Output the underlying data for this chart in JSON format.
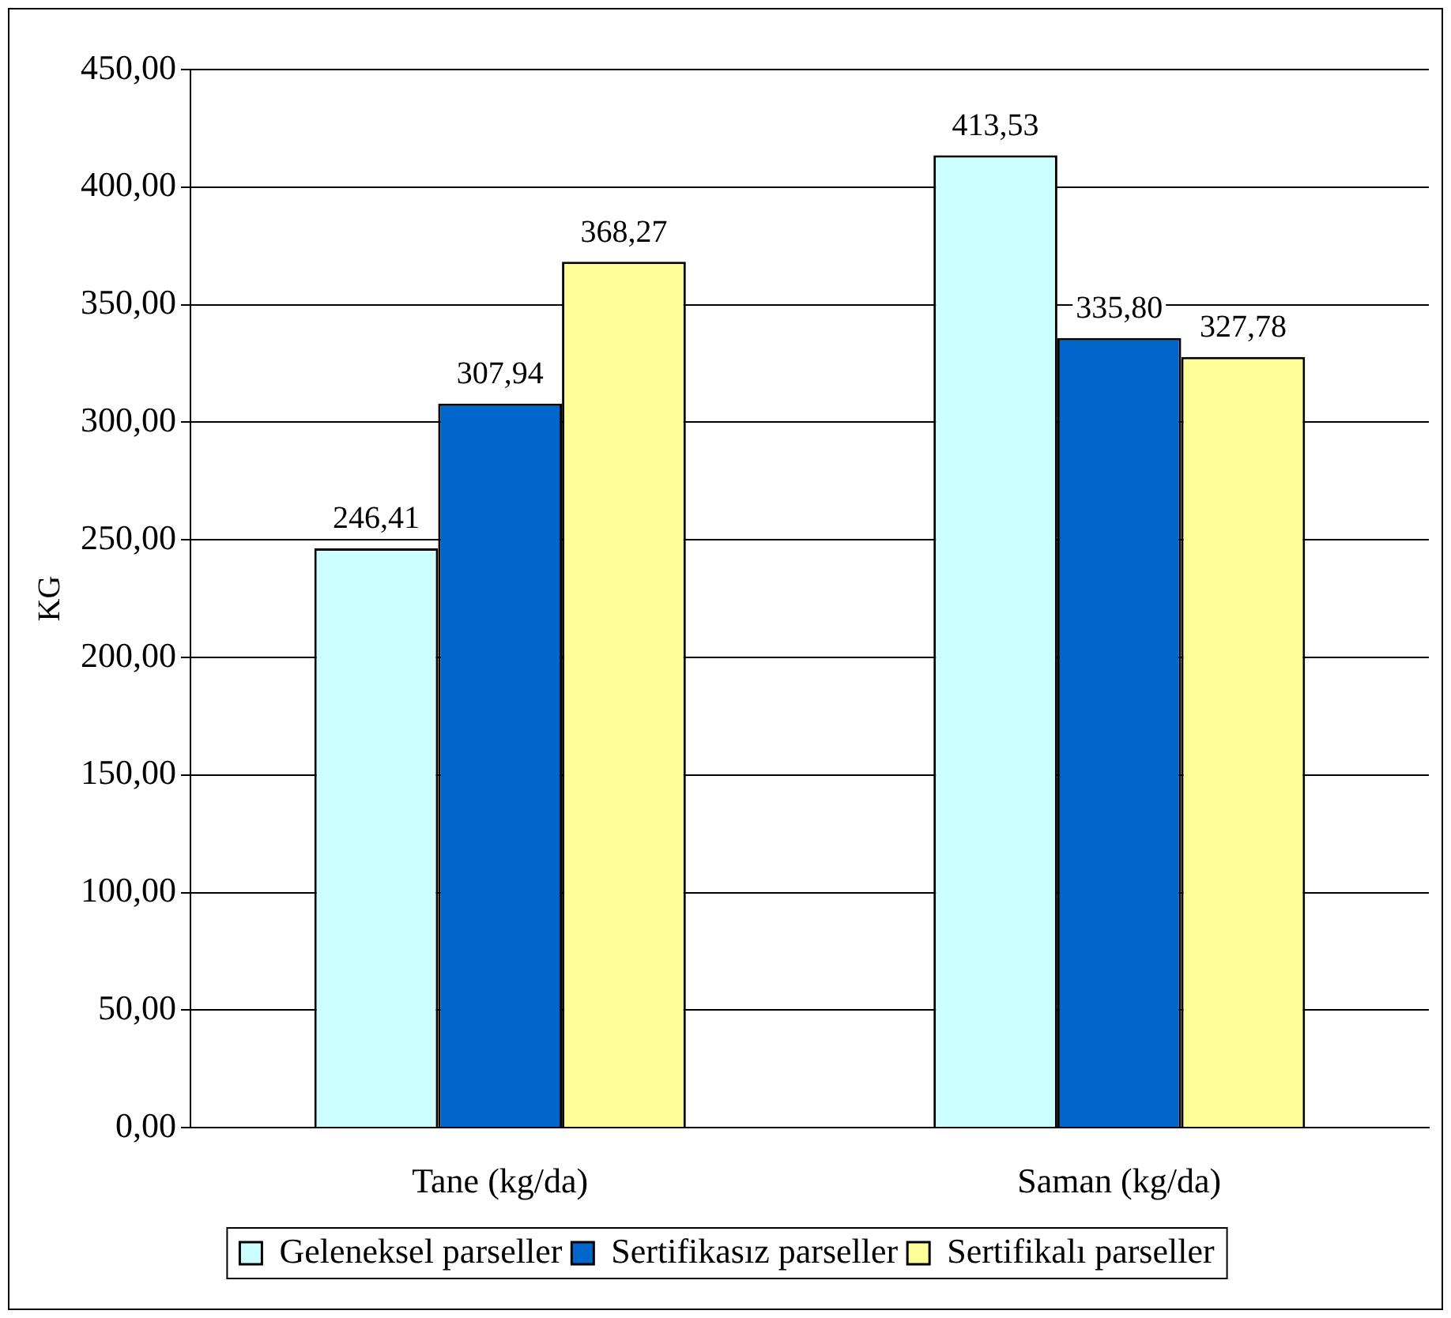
{
  "chart_data": {
    "type": "bar",
    "ylabel": "KG",
    "categories": [
      "Tane (kg/da)",
      "Saman (kg/da)"
    ],
    "series": [
      {
        "name": "Geleneksel parseller",
        "color": "#ccffff",
        "values": [
          246.41,
          413.53
        ],
        "value_labels": [
          "246,41",
          "413,53"
        ]
      },
      {
        "name": "Sertifikasız parseller",
        "color": "#0066cc",
        "values": [
          307.94,
          335.8
        ],
        "value_labels": [
          "307,94",
          "335,80"
        ]
      },
      {
        "name": "Sertifikalı parseller",
        "color": "#ffff99",
        "values": [
          368.27,
          327.78
        ],
        "value_labels": [
          "368,27",
          "327,78"
        ]
      }
    ],
    "ylim": [
      0,
      450
    ],
    "yticks": [
      {
        "value": 0,
        "label": "0,00"
      },
      {
        "value": 50,
        "label": "50,00"
      },
      {
        "value": 100,
        "label": "100,00"
      },
      {
        "value": 150,
        "label": "150,00"
      },
      {
        "value": 200,
        "label": "200,00"
      },
      {
        "value": 250,
        "label": "250,00"
      },
      {
        "value": 300,
        "label": "300,00"
      },
      {
        "value": 350,
        "label": "350,00"
      },
      {
        "value": 400,
        "label": "400,00"
      },
      {
        "value": 450,
        "label": "450,00"
      }
    ],
    "grid": "y",
    "legend": "bottom"
  }
}
